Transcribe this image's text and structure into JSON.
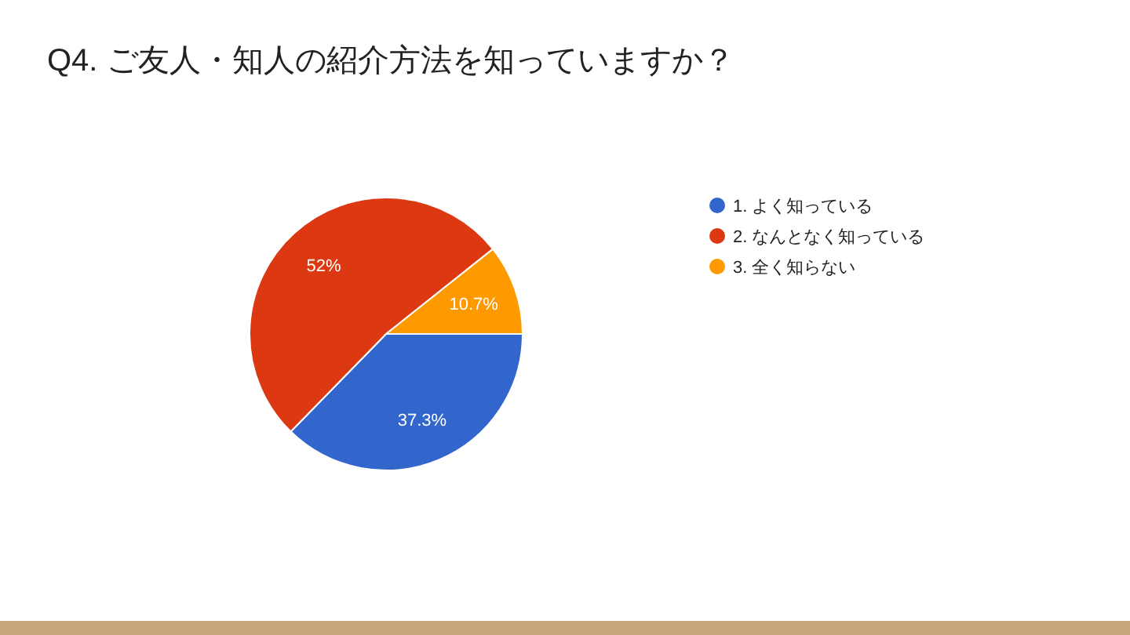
{
  "chart_data": {
    "type": "pie",
    "title": "Q4. ご友人・知人の紹介方法を知っていますか？",
    "categories": [
      "1. よく知っている",
      "2. なんとなく知っている",
      "3. 全く知らない"
    ],
    "values": [
      37.3,
      52,
      10.7
    ],
    "colors": [
      "#3366cc",
      "#dc3912",
      "#ff9900"
    ],
    "value_labels": [
      "37.3%",
      "52%",
      "10.7%"
    ],
    "legend": "right"
  }
}
